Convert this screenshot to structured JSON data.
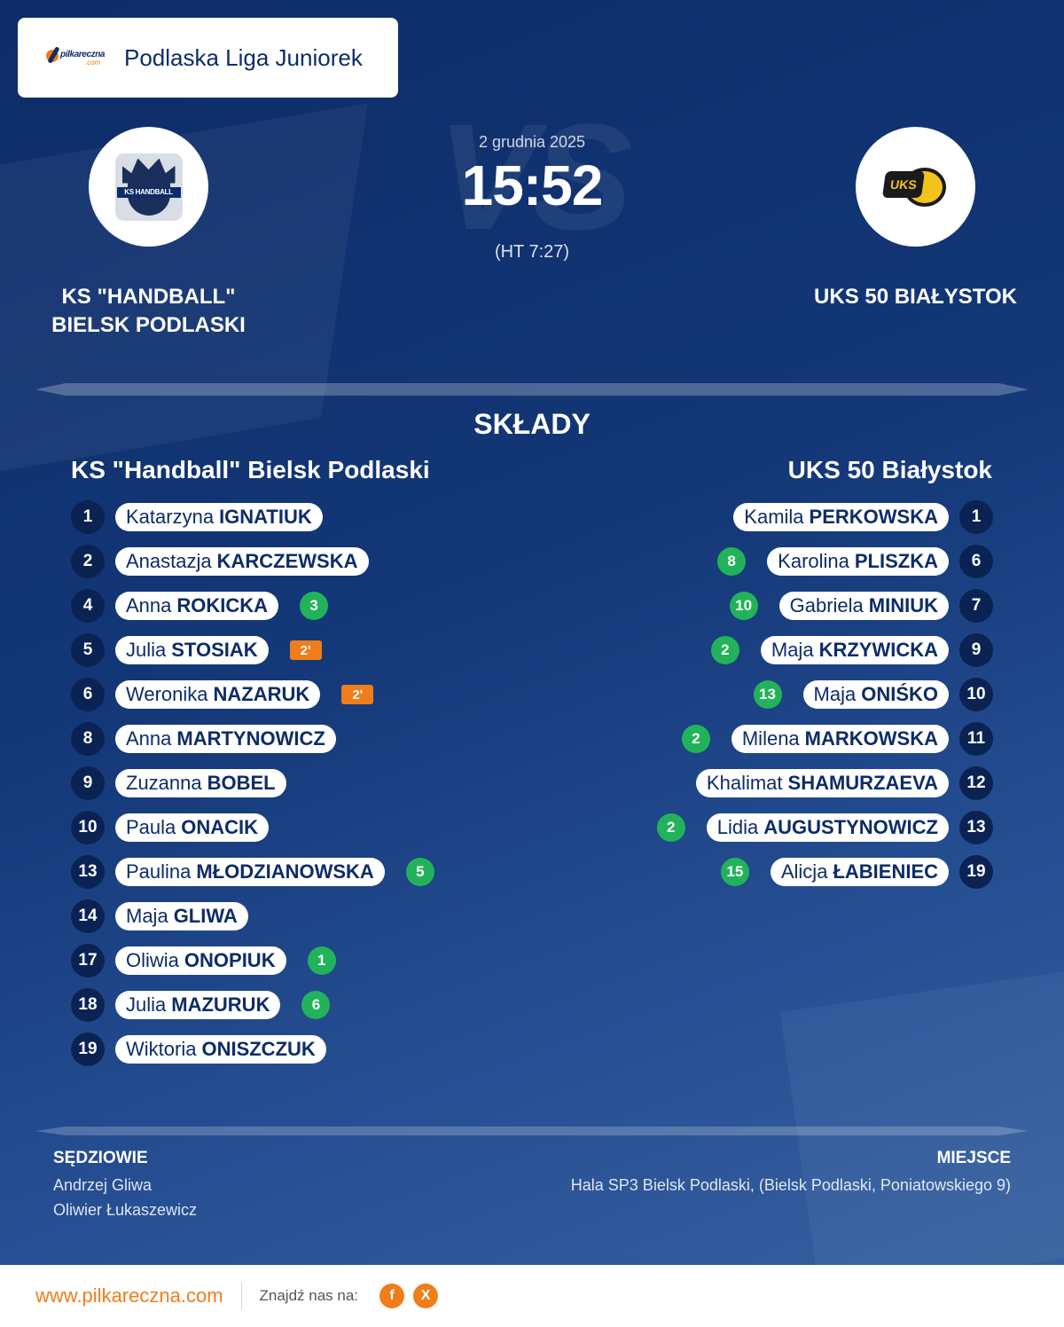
{
  "league": {
    "name": "Podlaska Liga Juniorek",
    "logo_text": "pilkareczna",
    "logo_subtext": ".com"
  },
  "match": {
    "date": "2 grudnia 2025",
    "score": "15:52",
    "halftime": "(HT 7:27)",
    "vs_watermark": "VS"
  },
  "home": {
    "name_line1": "KS \"HANDBALL\"",
    "name_line2": "BIELSK PODLASKI",
    "logo_text": "KS HANDBALL",
    "lineup_title": "KS \"Handball\" Bielsk Podlaski",
    "players": [
      {
        "number": "1",
        "first": "Katarzyna",
        "last": "IGNATIUK"
      },
      {
        "number": "2",
        "first": "Anastazja",
        "last": "KARCZEWSKA"
      },
      {
        "number": "4",
        "first": "Anna",
        "last": "ROKICKA",
        "goals": "3"
      },
      {
        "number": "5",
        "first": "Julia",
        "last": "STOSIAK",
        "suspension": "2'"
      },
      {
        "number": "6",
        "first": "Weronika",
        "last": "NAZARUK",
        "suspension": "2'"
      },
      {
        "number": "8",
        "first": "Anna",
        "last": "MARTYNOWICZ"
      },
      {
        "number": "9",
        "first": "Zuzanna",
        "last": "BOBEL"
      },
      {
        "number": "10",
        "first": "Paula",
        "last": "ONACIK"
      },
      {
        "number": "13",
        "first": "Paulina",
        "last": "MŁODZIANOWSKA",
        "goals": "5"
      },
      {
        "number": "14",
        "first": "Maja",
        "last": "GLIWA"
      },
      {
        "number": "17",
        "first": "Oliwia",
        "last": "ONOPIUK",
        "goals": "1"
      },
      {
        "number": "18",
        "first": "Julia",
        "last": "MAZURUK",
        "goals": "6"
      },
      {
        "number": "19",
        "first": "Wiktoria",
        "last": "ONISZCZUK"
      }
    ]
  },
  "away": {
    "name": "UKS 50 BIAŁYSTOK",
    "logo_text": "UKS",
    "lineup_title": "UKS 50 Białystok",
    "players": [
      {
        "number": "1",
        "first": "Kamila",
        "last": "PERKOWSKA"
      },
      {
        "number": "6",
        "first": "Karolina",
        "last": "PLISZKA",
        "goals": "8"
      },
      {
        "number": "7",
        "first": "Gabriela",
        "last": "MINIUK",
        "goals": "10"
      },
      {
        "number": "9",
        "first": "Maja",
        "last": "KRZYWICKA",
        "goals": "2"
      },
      {
        "number": "10",
        "first": "Maja",
        "last": "ONIŚKO",
        "goals": "13"
      },
      {
        "number": "11",
        "first": "Milena",
        "last": "MARKOWSKA",
        "goals": "2"
      },
      {
        "number": "12",
        "first": "Khalimat",
        "last": "SHAMURZAEVA"
      },
      {
        "number": "13",
        "first": "Lidia",
        "last": "AUGUSTYNOWICZ",
        "goals": "2"
      },
      {
        "number": "19",
        "first": "Alicja",
        "last": "ŁABIENIEC",
        "goals": "15"
      }
    ]
  },
  "section_title": "SKŁADY",
  "referees": {
    "label": "SĘDZIOWIE",
    "names": [
      "Andrzej Gliwa",
      "Oliwier Łukaszewicz"
    ]
  },
  "venue": {
    "label": "MIEJSCE",
    "text": "Hala SP3 Bielsk Podlaski, (Bielsk Podlaski, Poniatowskiego 9)"
  },
  "footer": {
    "url": "www.pilkareczna.com",
    "find_us": "Znajdź nas na:",
    "social": [
      {
        "icon": "facebook-icon",
        "glyph": "f"
      },
      {
        "icon": "x-icon",
        "glyph": "X"
      }
    ]
  },
  "colors": {
    "navy": "#0d2c68",
    "orange": "#f07d1a",
    "goal_green": "#22b35a"
  }
}
